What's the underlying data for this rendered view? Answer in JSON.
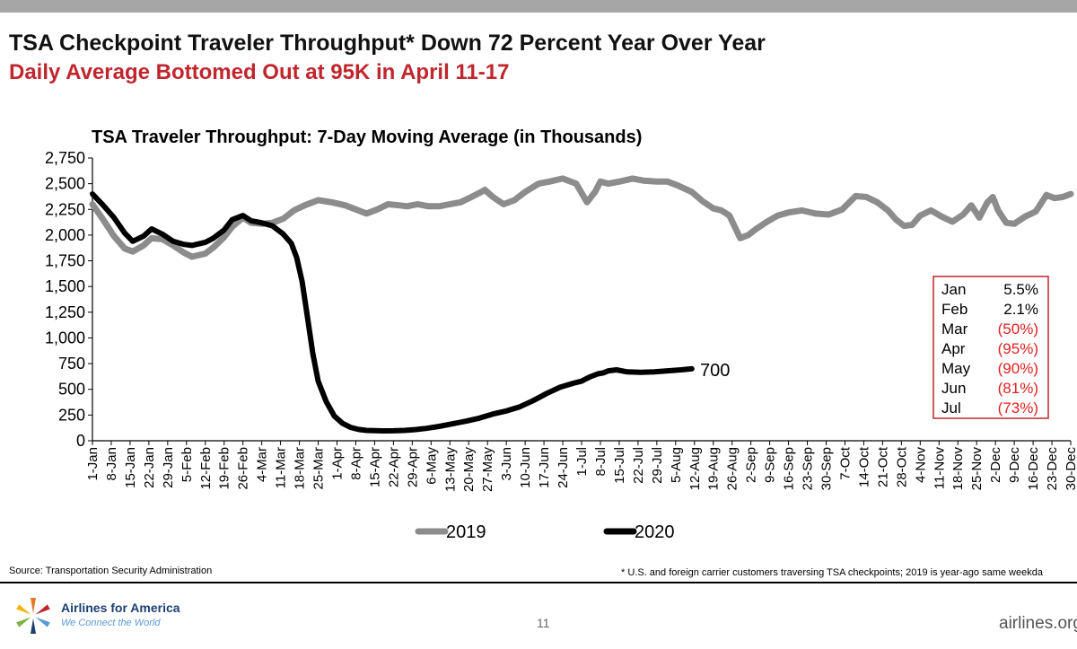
{
  "slide": {
    "title": "TSA Checkpoint Traveler Throughput* Down 72 Percent Year Over Year",
    "subtitle": "Daily Average Bottomed Out at 95K in April 11-17",
    "page_number": "11",
    "source": "Source: Transportation Security Administration",
    "footnote": "* U.S. and foreign carrier customers traversing TSA checkpoints; 2019 is year-ago same weekda",
    "brand_name": "Airlines for America",
    "brand_tagline": "We Connect the World",
    "website": "airlines.org"
  },
  "chart_data": {
    "type": "line",
    "title": "TSA Traveler Throughput: 7-Day Moving Average (in Thousands)",
    "xlabel": "",
    "ylabel": "",
    "ylim": [
      0,
      2750
    ],
    "yticks": [
      "0",
      "250",
      "500",
      "750",
      "1,000",
      "1,250",
      "1,500",
      "1,750",
      "2,000",
      "2,250",
      "2,500",
      "2,750"
    ],
    "x_unit": "day of year (1 = Jan 1)",
    "xlim": [
      1,
      365
    ],
    "x_tick_labels": [
      "1-Jan",
      "8-Jan",
      "15-Jan",
      "22-Jan",
      "29-Jan",
      "5-Feb",
      "12-Feb",
      "19-Feb",
      "26-Feb",
      "4-Mar",
      "11-Mar",
      "18-Mar",
      "25-Mar",
      "1-Apr",
      "8-Apr",
      "15-Apr",
      "22-Apr",
      "29-Apr",
      "6-May",
      "13-May",
      "20-May",
      "27-May",
      "3-Jun",
      "10-Jun",
      "17-Jun",
      "24-Jun",
      "1-Jul",
      "8-Jul",
      "15-Jul",
      "22-Jul",
      "29-Jul",
      "5-Aug",
      "12-Aug",
      "19-Aug",
      "26-Aug",
      "2-Sep",
      "9-Sep",
      "16-Sep",
      "23-Sep",
      "30-Sep",
      "7-Oct",
      "14-Oct",
      "21-Oct",
      "28-Oct",
      "4-Nov",
      "11-Nov",
      "18-Nov",
      "25-Nov",
      "2-Dec",
      "9-Dec",
      "16-Dec",
      "23-Dec",
      "30-Dec"
    ],
    "series": [
      {
        "name": "2019",
        "color": "#8c8c8c",
        "x": [
          1,
          5,
          9,
          13,
          16,
          20,
          23,
          27,
          31,
          35,
          38,
          43,
          46,
          50,
          53,
          57,
          60,
          64,
          68,
          72,
          76,
          80,
          85,
          90,
          95,
          99,
          103,
          107,
          111,
          115,
          118,
          122,
          126,
          130,
          134,
          138,
          142,
          145,
          147,
          150,
          154,
          158,
          162,
          167,
          171,
          176,
          181,
          185,
          188,
          190,
          193,
          197,
          202,
          206,
          211,
          215,
          219,
          224,
          228,
          232,
          235,
          238,
          240,
          242,
          245,
          248,
          252,
          256,
          260,
          265,
          270,
          275,
          280,
          285,
          289,
          293,
          297,
          300,
          303,
          306,
          309,
          313,
          317,
          321,
          325,
          328,
          331,
          334,
          336,
          338,
          341,
          344,
          348,
          352,
          356,
          359,
          362,
          365
        ],
        "values": [
          2300,
          2150,
          1990,
          1870,
          1840,
          1900,
          1970,
          1960,
          1900,
          1830,
          1790,
          1820,
          1880,
          1980,
          2080,
          2170,
          2120,
          2110,
          2120,
          2160,
          2240,
          2290,
          2340,
          2320,
          2290,
          2250,
          2210,
          2250,
          2300,
          2290,
          2280,
          2300,
          2280,
          2280,
          2300,
          2320,
          2370,
          2410,
          2440,
          2370,
          2300,
          2340,
          2420,
          2500,
          2520,
          2550,
          2500,
          2320,
          2420,
          2520,
          2500,
          2520,
          2550,
          2530,
          2520,
          2520,
          2480,
          2420,
          2330,
          2260,
          2240,
          2190,
          2080,
          1970,
          2000,
          2060,
          2130,
          2190,
          2220,
          2240,
          2210,
          2200,
          2250,
          2380,
          2370,
          2320,
          2240,
          2150,
          2090,
          2100,
          2190,
          2240,
          2180,
          2130,
          2200,
          2290,
          2170,
          2320,
          2370,
          2240,
          2120,
          2110,
          2180,
          2230,
          2390,
          2360,
          2370,
          2400
        ]
      },
      {
        "name": "2020",
        "color": "#000000",
        "x": [
          1,
          5,
          9,
          13,
          16,
          20,
          23,
          27,
          31,
          35,
          38,
          43,
          46,
          50,
          53,
          57,
          60,
          64,
          68,
          72,
          75,
          77,
          79,
          81,
          83,
          85,
          88,
          91,
          94,
          97,
          100,
          103,
          106,
          109,
          113,
          117,
          121,
          125,
          130,
          135,
          140,
          145,
          150,
          155,
          160,
          165,
          170,
          175,
          180,
          183,
          186,
          189,
          191,
          193,
          196,
          200,
          205,
          210,
          215,
          220,
          224
        ],
        "values": [
          2400,
          2290,
          2170,
          2020,
          1940,
          1990,
          2060,
          2010,
          1940,
          1910,
          1900,
          1930,
          1970,
          2050,
          2150,
          2190,
          2140,
          2120,
          2090,
          2010,
          1920,
          1780,
          1550,
          1200,
          850,
          580,
          380,
          240,
          170,
          130,
          110,
          100,
          98,
          96,
          97,
          100,
          108,
          120,
          140,
          165,
          190,
          220,
          260,
          290,
          330,
          390,
          460,
          520,
          560,
          580,
          620,
          650,
          660,
          680,
          690,
          670,
          665,
          670,
          680,
          690,
          700
        ]
      }
    ],
    "end_label": "700",
    "legend": [
      "2019",
      "2020"
    ],
    "legend_position": "bottom",
    "monthly_change": [
      {
        "month": "Jan",
        "value": "5.5%",
        "color": "#000000"
      },
      {
        "month": "Feb",
        "value": "2.1%",
        "color": "#000000"
      },
      {
        "month": "Mar",
        "value": "(50%)",
        "color": "#e02020"
      },
      {
        "month": "Apr",
        "value": "(95%)",
        "color": "#e02020"
      },
      {
        "month": "May",
        "value": "(90%)",
        "color": "#e02020"
      },
      {
        "month": "Jun",
        "value": "(81%)",
        "color": "#e02020"
      },
      {
        "month": "Jul",
        "value": "(73%)",
        "color": "#e02020"
      }
    ]
  }
}
